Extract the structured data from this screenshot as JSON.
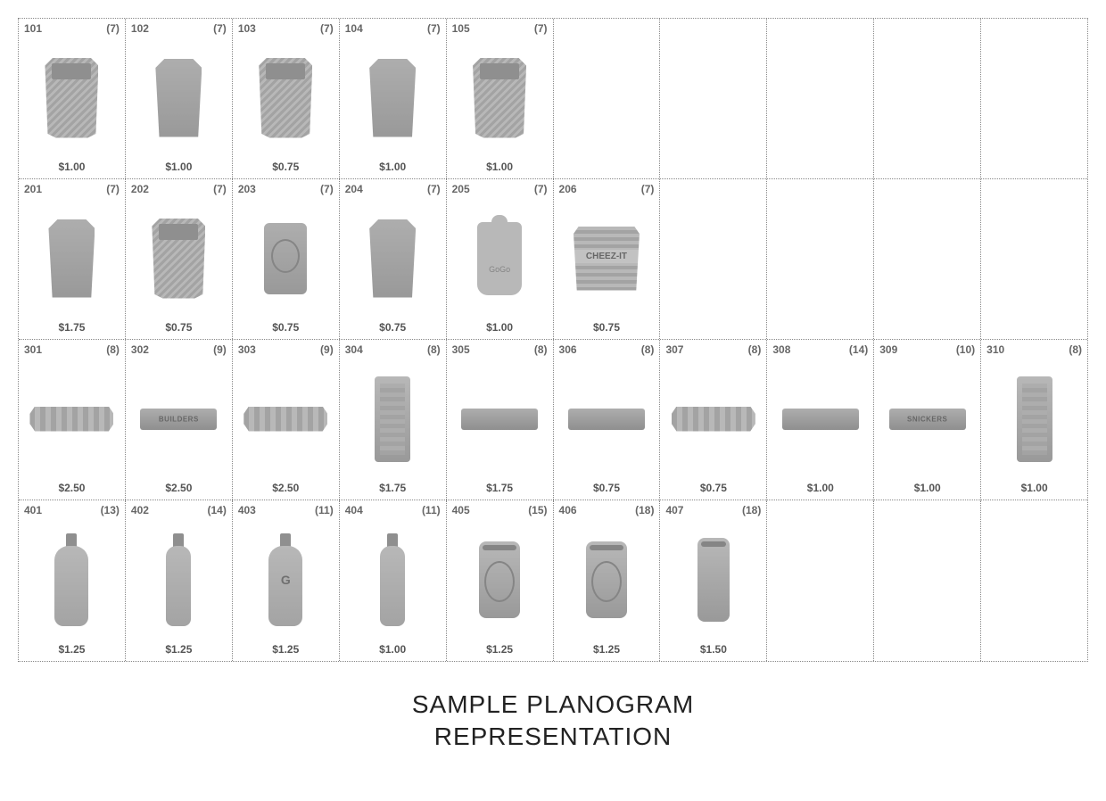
{
  "caption_line1": "SAMPLE PLANOGRAM",
  "caption_line2": "REPRESENTATION",
  "grid": {
    "cols": 10,
    "rows": 4
  },
  "colors": {
    "border": "#888888",
    "text": "#555555",
    "background": "#ffffff"
  },
  "shelves": [
    {
      "slots": [
        {
          "code": "101",
          "qty": "(7)",
          "price": "$1.00",
          "shape": "bag"
        },
        {
          "code": "102",
          "qty": "(7)",
          "price": "$1.00",
          "shape": "bag2"
        },
        {
          "code": "103",
          "qty": "(7)",
          "price": "$0.75",
          "shape": "bag"
        },
        {
          "code": "104",
          "qty": "(7)",
          "price": "$1.00",
          "shape": "bag2"
        },
        {
          "code": "105",
          "qty": "(7)",
          "price": "$1.00",
          "shape": "bag"
        },
        {
          "empty": true
        },
        {
          "empty": true
        },
        {
          "empty": true
        },
        {
          "empty": true
        },
        {
          "empty": true
        }
      ]
    },
    {
      "slots": [
        {
          "code": "201",
          "qty": "(7)",
          "price": "$1.75",
          "shape": "bag2"
        },
        {
          "code": "202",
          "qty": "(7)",
          "price": "$0.75",
          "shape": "bag"
        },
        {
          "code": "203",
          "qty": "(7)",
          "price": "$0.75",
          "shape": "can-round"
        },
        {
          "code": "204",
          "qty": "(7)",
          "price": "$0.75",
          "shape": "bag2"
        },
        {
          "code": "205",
          "qty": "(7)",
          "price": "$1.00",
          "shape": "pouch"
        },
        {
          "code": "206",
          "qty": "(7)",
          "price": "$0.75",
          "shape": "bag-wide"
        },
        {
          "empty": true
        },
        {
          "empty": true
        },
        {
          "empty": true
        },
        {
          "empty": true
        }
      ]
    },
    {
      "slots": [
        {
          "code": "301",
          "qty": "(8)",
          "price": "$2.50",
          "shape": "bar-wrap"
        },
        {
          "code": "302",
          "qty": "(9)",
          "price": "$2.50",
          "shape": "bar",
          "label": "BUILDERS"
        },
        {
          "code": "303",
          "qty": "(9)",
          "price": "$2.50",
          "shape": "bar-wrap"
        },
        {
          "code": "304",
          "qty": "(8)",
          "price": "$1.75",
          "shape": "bar-tall"
        },
        {
          "code": "305",
          "qty": "(8)",
          "price": "$1.75",
          "shape": "bar"
        },
        {
          "code": "306",
          "qty": "(8)",
          "price": "$0.75",
          "shape": "bar"
        },
        {
          "code": "307",
          "qty": "(8)",
          "price": "$0.75",
          "shape": "bar-wrap"
        },
        {
          "code": "308",
          "qty": "(14)",
          "price": "$1.00",
          "shape": "bar"
        },
        {
          "code": "309",
          "qty": "(10)",
          "price": "$1.00",
          "shape": "bar",
          "label": "SNICKERS"
        },
        {
          "code": "310",
          "qty": "(8)",
          "price": "$1.00",
          "shape": "bar-tall"
        }
      ]
    },
    {
      "slots": [
        {
          "code": "401",
          "qty": "(13)",
          "price": "$1.25",
          "shape": "bottle"
        },
        {
          "code": "402",
          "qty": "(14)",
          "price": "$1.25",
          "shape": "bottle-slim"
        },
        {
          "code": "403",
          "qty": "(11)",
          "price": "$1.25",
          "shape": "bottle",
          "glyph": "G"
        },
        {
          "code": "404",
          "qty": "(11)",
          "price": "$1.00",
          "shape": "bottle-slim"
        },
        {
          "code": "405",
          "qty": "(15)",
          "price": "$1.25",
          "shape": "can",
          "deco": true
        },
        {
          "code": "406",
          "qty": "(18)",
          "price": "$1.25",
          "shape": "can",
          "deco": true
        },
        {
          "code": "407",
          "qty": "(18)",
          "price": "$1.50",
          "shape": "can-slim"
        },
        {
          "empty": true
        },
        {
          "empty": true
        },
        {
          "empty": true
        }
      ]
    }
  ]
}
